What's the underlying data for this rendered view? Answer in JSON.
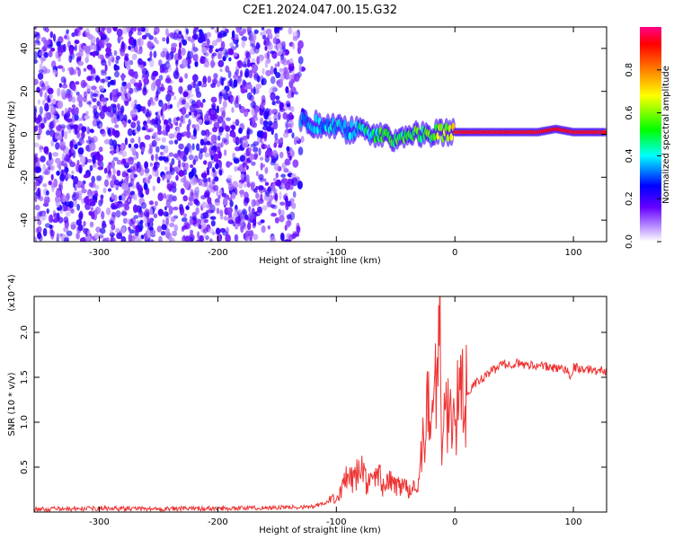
{
  "title": "C2E1.2024.047.00.15.G32",
  "chart_data": [
    {
      "type": "heatmap",
      "xlabel": "Height of straight line (km)",
      "ylabel": "Frequency (Hz)",
      "xlim": [
        -355,
        128
      ],
      "ylim": [
        -50,
        50
      ],
      "x_ticks": [
        -300,
        -200,
        -100,
        0,
        100
      ],
      "x_tick_labels": [
        "-300",
        "-200",
        "-100",
        "0",
        "100"
      ],
      "y_ticks": [
        -40,
        -20,
        0,
        20,
        40
      ],
      "y_tick_labels": [
        "-40",
        "-20",
        "0",
        "20",
        "40"
      ],
      "colorbar": {
        "label": "Normalized spectral amplitude",
        "range": [
          0,
          1
        ],
        "ticks": [
          0.0,
          0.2,
          0.4,
          0.6,
          0.8
        ],
        "tick_labels": [
          "0.0",
          "0.2",
          "0.4",
          "0.6",
          "0.8"
        ],
        "colors": [
          "#ffffff",
          "#6600ff",
          "#0000ff",
          "#00ffff",
          "#00ff00",
          "#ffff00",
          "#ff8000",
          "#ff0000",
          "#ff0080"
        ]
      },
      "noise_region": {
        "x_range": [
          -355,
          -125
        ],
        "y_range": [
          -50,
          50
        ],
        "typical_amplitude": [
          0.05,
          0.25
        ]
      },
      "ridge": [
        {
          "x": -130,
          "y": 6,
          "amp": 0.35
        },
        {
          "x": -120,
          "y": 5,
          "amp": 0.4
        },
        {
          "x": -110,
          "y": 4,
          "amp": 0.42
        },
        {
          "x": -100,
          "y": 3.5,
          "amp": 0.45
        },
        {
          "x": -90,
          "y": 2,
          "amp": 0.45
        },
        {
          "x": -80,
          "y": 1.5,
          "amp": 0.5
        },
        {
          "x": -70,
          "y": 0,
          "amp": 0.55
        },
        {
          "x": -60,
          "y": -1,
          "amp": 0.6
        },
        {
          "x": -50,
          "y": -2,
          "amp": 0.6
        },
        {
          "x": -40,
          "y": -1.5,
          "amp": 0.62
        },
        {
          "x": -30,
          "y": 0,
          "amp": 0.62
        },
        {
          "x": -20,
          "y": 0.5,
          "amp": 0.65
        },
        {
          "x": -10,
          "y": 1,
          "amp": 0.7
        },
        {
          "x": 0,
          "y": 1,
          "amp": 0.85
        },
        {
          "x": 10,
          "y": 1,
          "amp": 0.88
        },
        {
          "x": 30,
          "y": 1,
          "amp": 0.88
        },
        {
          "x": 50,
          "y": 1,
          "amp": 0.88
        },
        {
          "x": 70,
          "y": 1,
          "amp": 0.88
        },
        {
          "x": 85,
          "y": 2.5,
          "amp": 0.9
        },
        {
          "x": 100,
          "y": 1,
          "amp": 0.88
        },
        {
          "x": 128,
          "y": 1,
          "amp": 0.88
        }
      ]
    },
    {
      "type": "line",
      "xlabel": "Height of straight line (km)",
      "ylabel": "SNR (10 * v/v)",
      "y_multiplier": "(x10^4)",
      "xlim": [
        -355,
        128
      ],
      "ylim": [
        0,
        24000
      ],
      "x_ticks": [
        -300,
        -200,
        -100,
        0,
        100
      ],
      "x_tick_labels": [
        "-300",
        "-200",
        "-100",
        "0",
        "100"
      ],
      "y_ticks": [
        5000,
        10000,
        15000,
        20000
      ],
      "y_tick_labels": [
        "0.5",
        "1.0",
        "1.5",
        "2.0"
      ],
      "series": [
        {
          "color": "#ee3333",
          "x": [
            -355,
            -300,
            -250,
            -200,
            -150,
            -120,
            -110,
            -100,
            -95,
            -90,
            -85,
            -80,
            -75,
            -70,
            -65,
            -60,
            -55,
            -50,
            -45,
            -40,
            -35,
            -30,
            -28,
            -25,
            -22,
            -20,
            -18,
            -15,
            -13,
            -11,
            -8,
            -5,
            -2,
            0,
            5,
            10,
            15,
            20,
            25,
            30,
            35,
            40,
            45,
            50,
            55,
            60,
            65,
            70,
            75,
            80,
            85,
            90,
            95,
            97,
            100,
            105,
            110,
            115,
            120,
            125,
            128
          ],
          "y": [
            300,
            400,
            350,
            400,
            500,
            600,
            900,
            1800,
            2600,
            4000,
            3200,
            5200,
            3500,
            3000,
            4400,
            2800,
            3400,
            2900,
            3200,
            2700,
            3000,
            2600,
            7000,
            9600,
            12000,
            9000,
            13000,
            18000,
            23500,
            8000,
            11500,
            10000,
            12000,
            11000,
            12500,
            13000,
            14000,
            14600,
            15000,
            15600,
            16000,
            16500,
            16400,
            16600,
            16500,
            16300,
            16400,
            16300,
            16200,
            16100,
            16000,
            16000,
            15900,
            14800,
            16200,
            16000,
            15800,
            15900,
            15700,
            15800,
            15600
          ]
        }
      ]
    }
  ]
}
